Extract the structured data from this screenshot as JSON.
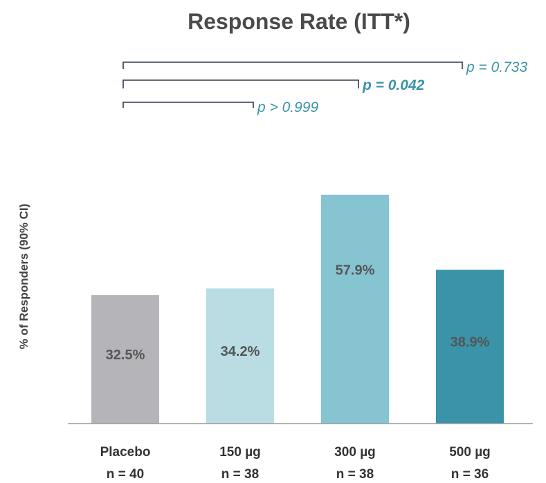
{
  "chart_data": {
    "type": "bar",
    "title": "Response Rate (ITT*)",
    "ylabel": "% of Responders (90% CI)",
    "xlabel": "",
    "ylim": [
      0,
      75
    ],
    "grid": false,
    "categories": [
      "Placebo",
      "150 µg",
      "300 µg",
      "500 µg"
    ],
    "sample_sizes": [
      "n = 40",
      "n = 38",
      "n = 38",
      "n = 36"
    ],
    "values": [
      32.5,
      34.2,
      57.9,
      38.9
    ],
    "value_labels": [
      "32.5%",
      "34.2%",
      "57.9%",
      "38.9%"
    ],
    "colors": [
      "#b4b4b9",
      "#b9dde3",
      "#86c4d1",
      "#3a93a8"
    ],
    "comparisons": [
      {
        "from": "Placebo",
        "to": "150 µg",
        "label": "p > 0.999",
        "bold": false
      },
      {
        "from": "Placebo",
        "to": "300 µg",
        "label": "p = 0.042",
        "bold": true
      },
      {
        "from": "Placebo",
        "to": "500 µg",
        "label": "p = 0.733",
        "bold": false
      }
    ],
    "annotation_color": "#3a93a8"
  }
}
